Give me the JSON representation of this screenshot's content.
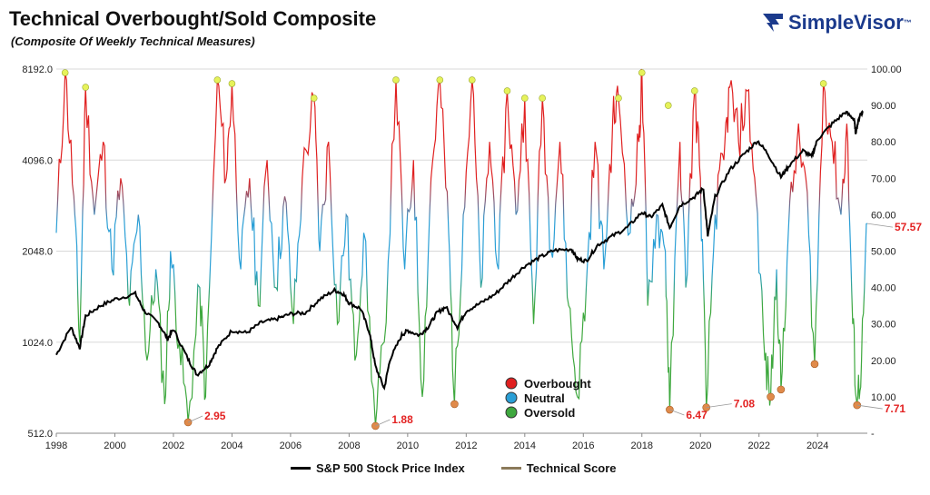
{
  "header": {
    "title": "Technical Overbought/Sold Composite",
    "subtitle": "(Composite Of Weekly Technical Measures)"
  },
  "brand": {
    "name": "SimpleVisor",
    "trademark": "™",
    "color": "#1b3a8c"
  },
  "chart_data": {
    "type": "line",
    "y_left": {
      "ticks": [
        "8192.0",
        "4096.0",
        "2048.0",
        "1024.0",
        "512.0"
      ],
      "scale": "log2",
      "range": [
        512,
        8192
      ]
    },
    "y_right": {
      "ticks": [
        "100.00",
        "90.00",
        "80.00",
        "70.00",
        "60.00",
        "50.00",
        "40.00",
        "30.00",
        "20.00",
        "10.00",
        "-"
      ],
      "range": [
        0,
        100
      ]
    },
    "x_ticks": [
      "1998",
      "2000",
      "2002",
      "2004",
      "2006",
      "2008",
      "2010",
      "2012",
      "2014",
      "2016",
      "2018",
      "2020",
      "2022",
      "2024"
    ],
    "x_range": [
      1998,
      2025.7
    ],
    "series": [
      {
        "name": "S&P 500 Stock Price Index",
        "color": "#000000",
        "axis": "left",
        "points": [
          [
            1998.0,
            930
          ],
          [
            1998.5,
            1150
          ],
          [
            1998.8,
            980
          ],
          [
            1999.0,
            1250
          ],
          [
            1999.5,
            1350
          ],
          [
            2000.0,
            1420
          ],
          [
            2000.7,
            1480
          ],
          [
            2001.0,
            1300
          ],
          [
            2001.5,
            1180
          ],
          [
            2001.8,
            1050
          ],
          [
            2002.0,
            1130
          ],
          [
            2002.5,
            900
          ],
          [
            2002.8,
            800
          ],
          [
            2003.2,
            860
          ],
          [
            2003.5,
            980
          ],
          [
            2004.0,
            1120
          ],
          [
            2004.5,
            1100
          ],
          [
            2005.0,
            1190
          ],
          [
            2005.5,
            1220
          ],
          [
            2006.0,
            1270
          ],
          [
            2006.5,
            1280
          ],
          [
            2007.0,
            1420
          ],
          [
            2007.5,
            1520
          ],
          [
            2007.8,
            1480
          ],
          [
            2008.0,
            1380
          ],
          [
            2008.4,
            1320
          ],
          [
            2008.7,
            1100
          ],
          [
            2008.9,
            850
          ],
          [
            2009.2,
            720
          ],
          [
            2009.4,
            900
          ],
          [
            2009.8,
            1080
          ],
          [
            2010.0,
            1120
          ],
          [
            2010.4,
            1080
          ],
          [
            2010.7,
            1150
          ],
          [
            2011.0,
            1280
          ],
          [
            2011.3,
            1340
          ],
          [
            2011.7,
            1150
          ],
          [
            2012.0,
            1300
          ],
          [
            2012.5,
            1380
          ],
          [
            2013.0,
            1480
          ],
          [
            2013.5,
            1650
          ],
          [
            2014.0,
            1830
          ],
          [
            2014.5,
            1950
          ],
          [
            2015.0,
            2060
          ],
          [
            2015.6,
            2080
          ],
          [
            2015.8,
            1930
          ],
          [
            2016.1,
            1900
          ],
          [
            2016.5,
            2150
          ],
          [
            2017.0,
            2300
          ],
          [
            2017.5,
            2450
          ],
          [
            2018.0,
            2750
          ],
          [
            2018.3,
            2650
          ],
          [
            2018.7,
            2900
          ],
          [
            2018.95,
            2450
          ],
          [
            2019.3,
            2900
          ],
          [
            2019.8,
            3100
          ],
          [
            2020.1,
            3300
          ],
          [
            2020.25,
            2300
          ],
          [
            2020.5,
            3100
          ],
          [
            2021.0,
            3800
          ],
          [
            2021.5,
            4300
          ],
          [
            2021.95,
            4750
          ],
          [
            2022.3,
            4300
          ],
          [
            2022.75,
            3600
          ],
          [
            2023.0,
            3900
          ],
          [
            2023.5,
            4400
          ],
          [
            2023.8,
            4200
          ],
          [
            2024.0,
            4800
          ],
          [
            2024.5,
            5400
          ],
          [
            2024.95,
            5900
          ],
          [
            2025.25,
            5600
          ],
          [
            2025.3,
            5050
          ],
          [
            2025.45,
            5800
          ],
          [
            2025.55,
            5950
          ]
        ]
      },
      {
        "name": "Technical Score",
        "color": "#8b7a5a",
        "axis": "right",
        "gradient": {
          "overbought": "#e02020",
          "neutral": "#2a9fd6",
          "oversold": "#3ea83e"
        },
        "points": [
          [
            1998.0,
            55
          ],
          [
            1998.3,
            99
          ],
          [
            1998.6,
            65
          ],
          [
            1998.8,
            25
          ],
          [
            1999.0,
            95
          ],
          [
            1999.3,
            60
          ],
          [
            1999.6,
            80
          ],
          [
            1999.9,
            45
          ],
          [
            2000.2,
            70
          ],
          [
            2000.5,
            35
          ],
          [
            2000.8,
            60
          ],
          [
            2001.1,
            20
          ],
          [
            2001.4,
            45
          ],
          [
            2001.7,
            8
          ],
          [
            2001.9,
            50
          ],
          [
            2002.2,
            25
          ],
          [
            2002.5,
            3
          ],
          [
            2002.9,
            40
          ],
          [
            2003.1,
            10
          ],
          [
            2003.5,
            97
          ],
          [
            2003.8,
            70
          ],
          [
            2004.0,
            96
          ],
          [
            2004.3,
            45
          ],
          [
            2004.6,
            70
          ],
          [
            2004.9,
            35
          ],
          [
            2005.2,
            75
          ],
          [
            2005.5,
            40
          ],
          [
            2005.8,
            65
          ],
          [
            2006.1,
            30
          ],
          [
            2006.4,
            70
          ],
          [
            2006.8,
            92
          ],
          [
            2007.0,
            50
          ],
          [
            2007.3,
            80
          ],
          [
            2007.6,
            30
          ],
          [
            2007.9,
            60
          ],
          [
            2008.2,
            20
          ],
          [
            2008.5,
            55
          ],
          [
            2008.9,
            2
          ],
          [
            2009.2,
            25
          ],
          [
            2009.6,
            97
          ],
          [
            2009.9,
            45
          ],
          [
            2010.2,
            75
          ],
          [
            2010.5,
            10
          ],
          [
            2010.8,
            70
          ],
          [
            2011.1,
            97
          ],
          [
            2011.4,
            55
          ],
          [
            2011.6,
            8
          ],
          [
            2011.9,
            60
          ],
          [
            2012.2,
            97
          ],
          [
            2012.5,
            40
          ],
          [
            2012.8,
            80
          ],
          [
            2013.1,
            45
          ],
          [
            2013.4,
            94
          ],
          [
            2013.7,
            60
          ],
          [
            2014.0,
            92
          ],
          [
            2014.3,
            30
          ],
          [
            2014.6,
            92
          ],
          [
            2014.9,
            50
          ],
          [
            2015.2,
            80
          ],
          [
            2015.5,
            35
          ],
          [
            2015.8,
            10
          ],
          [
            2016.1,
            40
          ],
          [
            2016.4,
            80
          ],
          [
            2016.7,
            45
          ],
          [
            2017.0,
            85
          ],
          [
            2017.2,
            92
          ],
          [
            2017.6,
            55
          ],
          [
            2017.9,
            80
          ],
          [
            2018.0,
            99
          ],
          [
            2018.2,
            35
          ],
          [
            2018.5,
            60
          ],
          [
            2018.8,
            50
          ],
          [
            2018.95,
            6
          ],
          [
            2019.3,
            80
          ],
          [
            2019.5,
            40
          ],
          [
            2019.8,
            94
          ],
          [
            2020.0,
            70
          ],
          [
            2020.2,
            7
          ],
          [
            2020.5,
            60
          ],
          [
            2020.8,
            75
          ],
          [
            2021.0,
            95
          ],
          [
            2021.3,
            80
          ],
          [
            2021.6,
            94
          ],
          [
            2021.9,
            65
          ],
          [
            2022.2,
            20
          ],
          [
            2022.4,
            10
          ],
          [
            2022.6,
            45
          ],
          [
            2022.75,
            12
          ],
          [
            2023.0,
            55
          ],
          [
            2023.3,
            80
          ],
          [
            2023.6,
            70
          ],
          [
            2023.9,
            19
          ],
          [
            2024.2,
            96
          ],
          [
            2024.5,
            80
          ],
          [
            2024.8,
            60
          ],
          [
            2025.0,
            85
          ],
          [
            2025.2,
            30
          ],
          [
            2025.35,
            8
          ],
          [
            2025.5,
            20
          ],
          [
            2025.7,
            57.57
          ]
        ]
      }
    ],
    "overbought_markers": [
      [
        1998.3,
        99
      ],
      [
        1999.0,
        95
      ],
      [
        2003.5,
        97
      ],
      [
        2004.0,
        96
      ],
      [
        2006.8,
        92
      ],
      [
        2009.6,
        97
      ],
      [
        2011.1,
        97
      ],
      [
        2012.2,
        97
      ],
      [
        2013.4,
        94
      ],
      [
        2014.0,
        92
      ],
      [
        2014.6,
        92
      ],
      [
        2017.2,
        92
      ],
      [
        2018.0,
        99
      ],
      [
        2018.9,
        90
      ],
      [
        2019.8,
        94
      ],
      [
        2024.2,
        96
      ]
    ],
    "oversold_markers": [
      [
        2002.5,
        3
      ],
      [
        2008.9,
        2
      ],
      [
        2011.6,
        8
      ],
      [
        2018.95,
        6.47
      ],
      [
        2020.2,
        7.08
      ],
      [
        2022.4,
        10
      ],
      [
        2022.75,
        12
      ],
      [
        2023.9,
        19
      ],
      [
        2025.35,
        7.71
      ]
    ],
    "callouts": [
      "2.95",
      "1.88",
      "6.47",
      "7.08",
      "7.71",
      "57.57"
    ],
    "legend": [
      "Overbought",
      "Neutral",
      "Oversold"
    ],
    "legend_colors": [
      "#e02020",
      "#2a9fd6",
      "#3ea83e"
    ],
    "grid": true
  },
  "bottom_legend": {
    "spx_label": "S&P 500 Stock Price Index",
    "score_label": "Technical Score"
  }
}
